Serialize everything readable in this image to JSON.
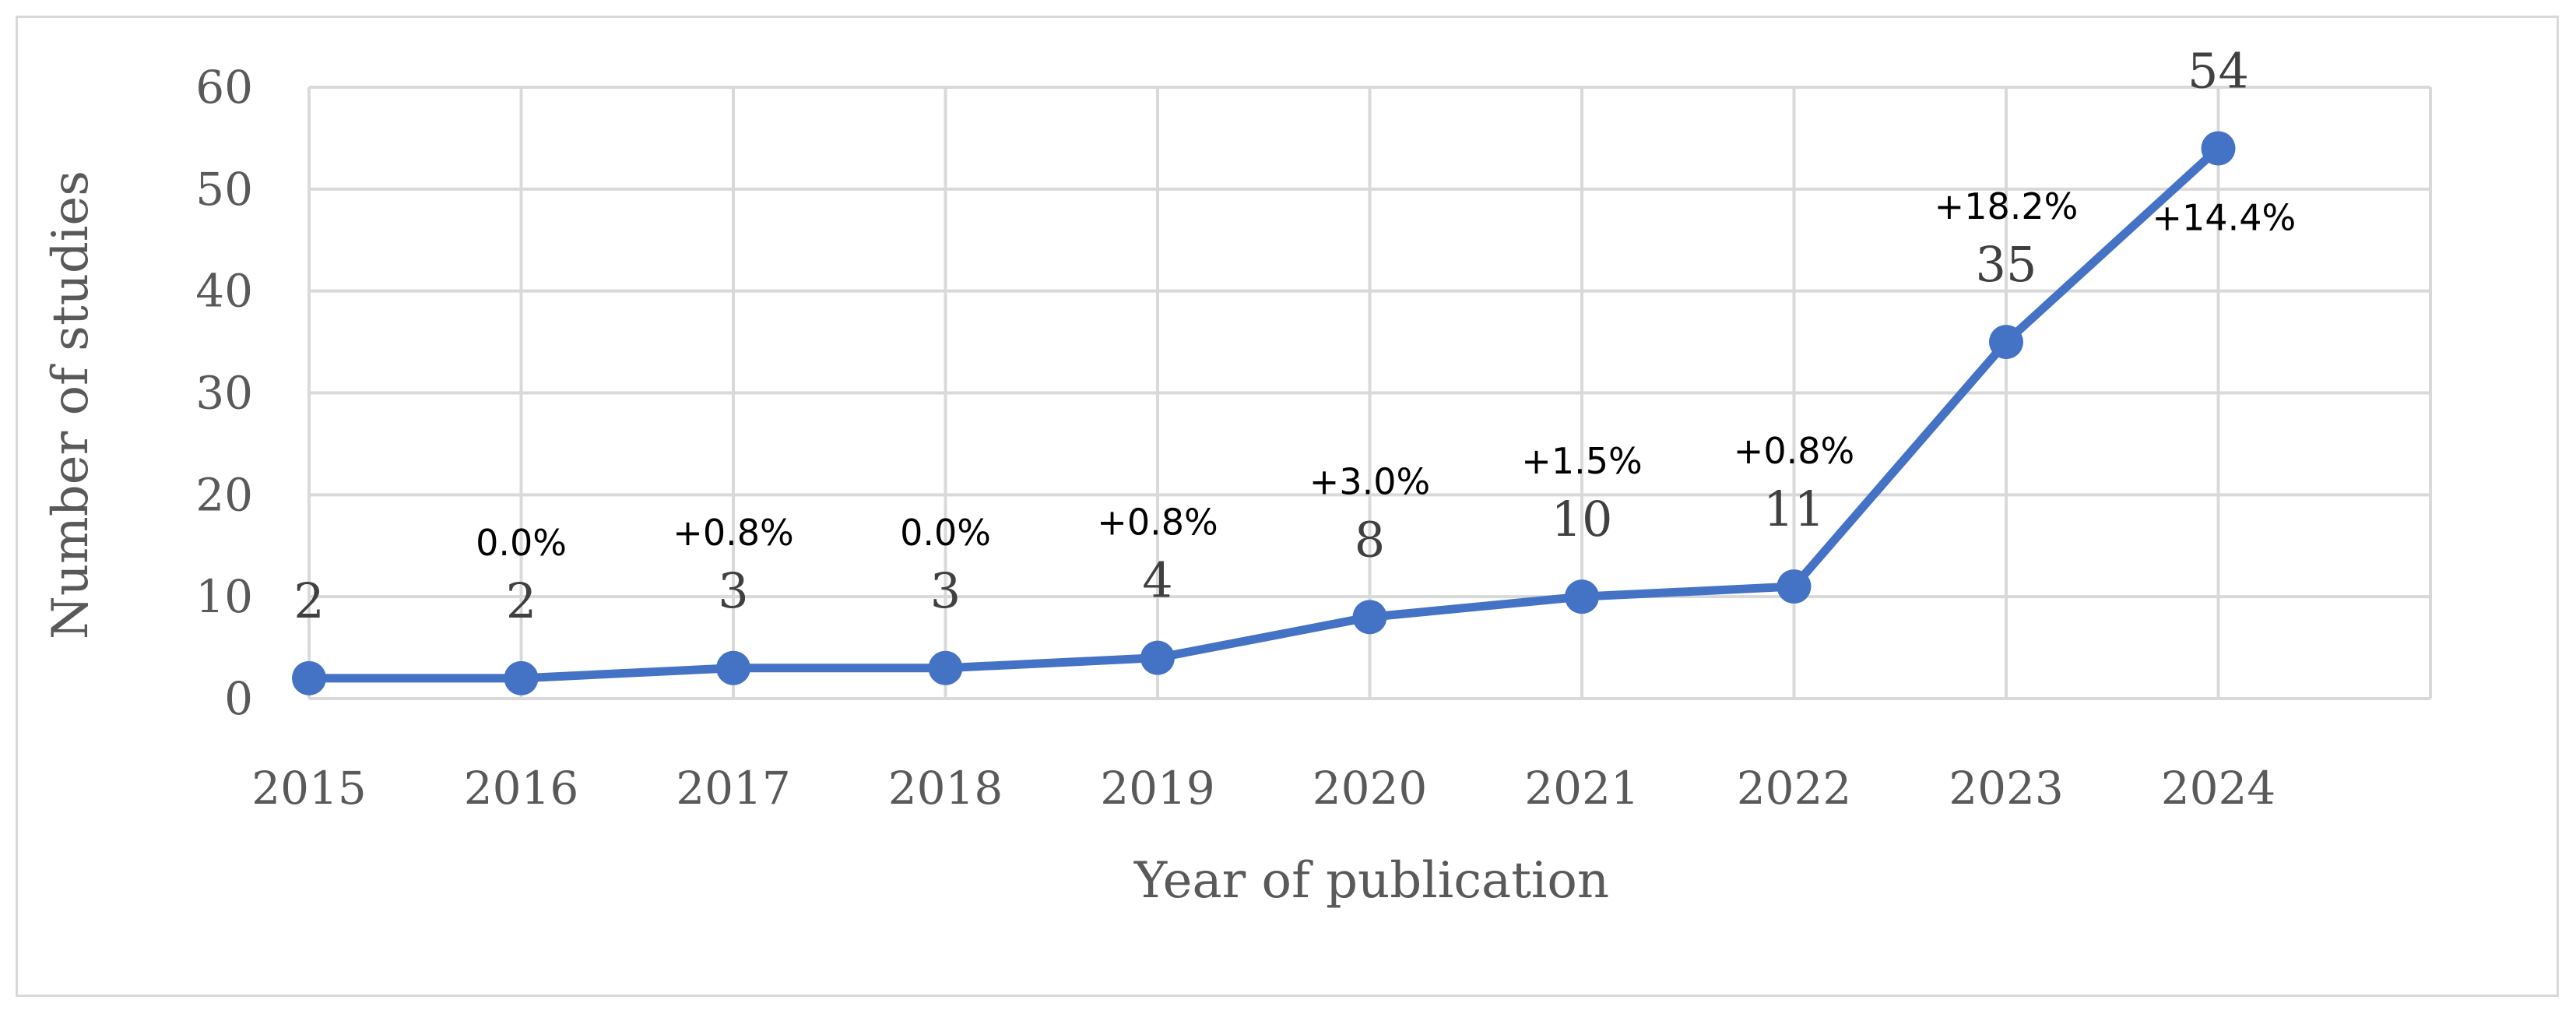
{
  "chart_data": {
    "type": "line",
    "title": "",
    "xlabel": "Year of publication",
    "ylabel": "Number of studies",
    "categories": [
      "2015",
      "2016",
      "2017",
      "2018",
      "2019",
      "2020",
      "2021",
      "2022",
      "2023",
      "2024"
    ],
    "series": [
      {
        "values": [
          2,
          2,
          3,
          3,
          4,
          8,
          10,
          11,
          35,
          54
        ],
        "data_labels": [
          "2",
          "2",
          "3",
          "3",
          "4",
          "8",
          "10",
          "11",
          "35",
          "54"
        ],
        "color": "#4472c4"
      }
    ],
    "annotations": [
      "",
      "0.0%",
      "+0.8%",
      "0.0%",
      "+0.8%",
      "+3.0%",
      "+1.5%",
      "+0.8%",
      "+18.2%",
      "+14.4%"
    ],
    "ylim": [
      0,
      60
    ],
    "yticks": [
      "0",
      "10",
      "20",
      "30",
      "40",
      "50",
      "60"
    ],
    "grid": true,
    "legend": "none",
    "colors": {
      "line": "#4472c4",
      "grid": "#d9d9d9",
      "border": "#d9d9d9"
    }
  }
}
